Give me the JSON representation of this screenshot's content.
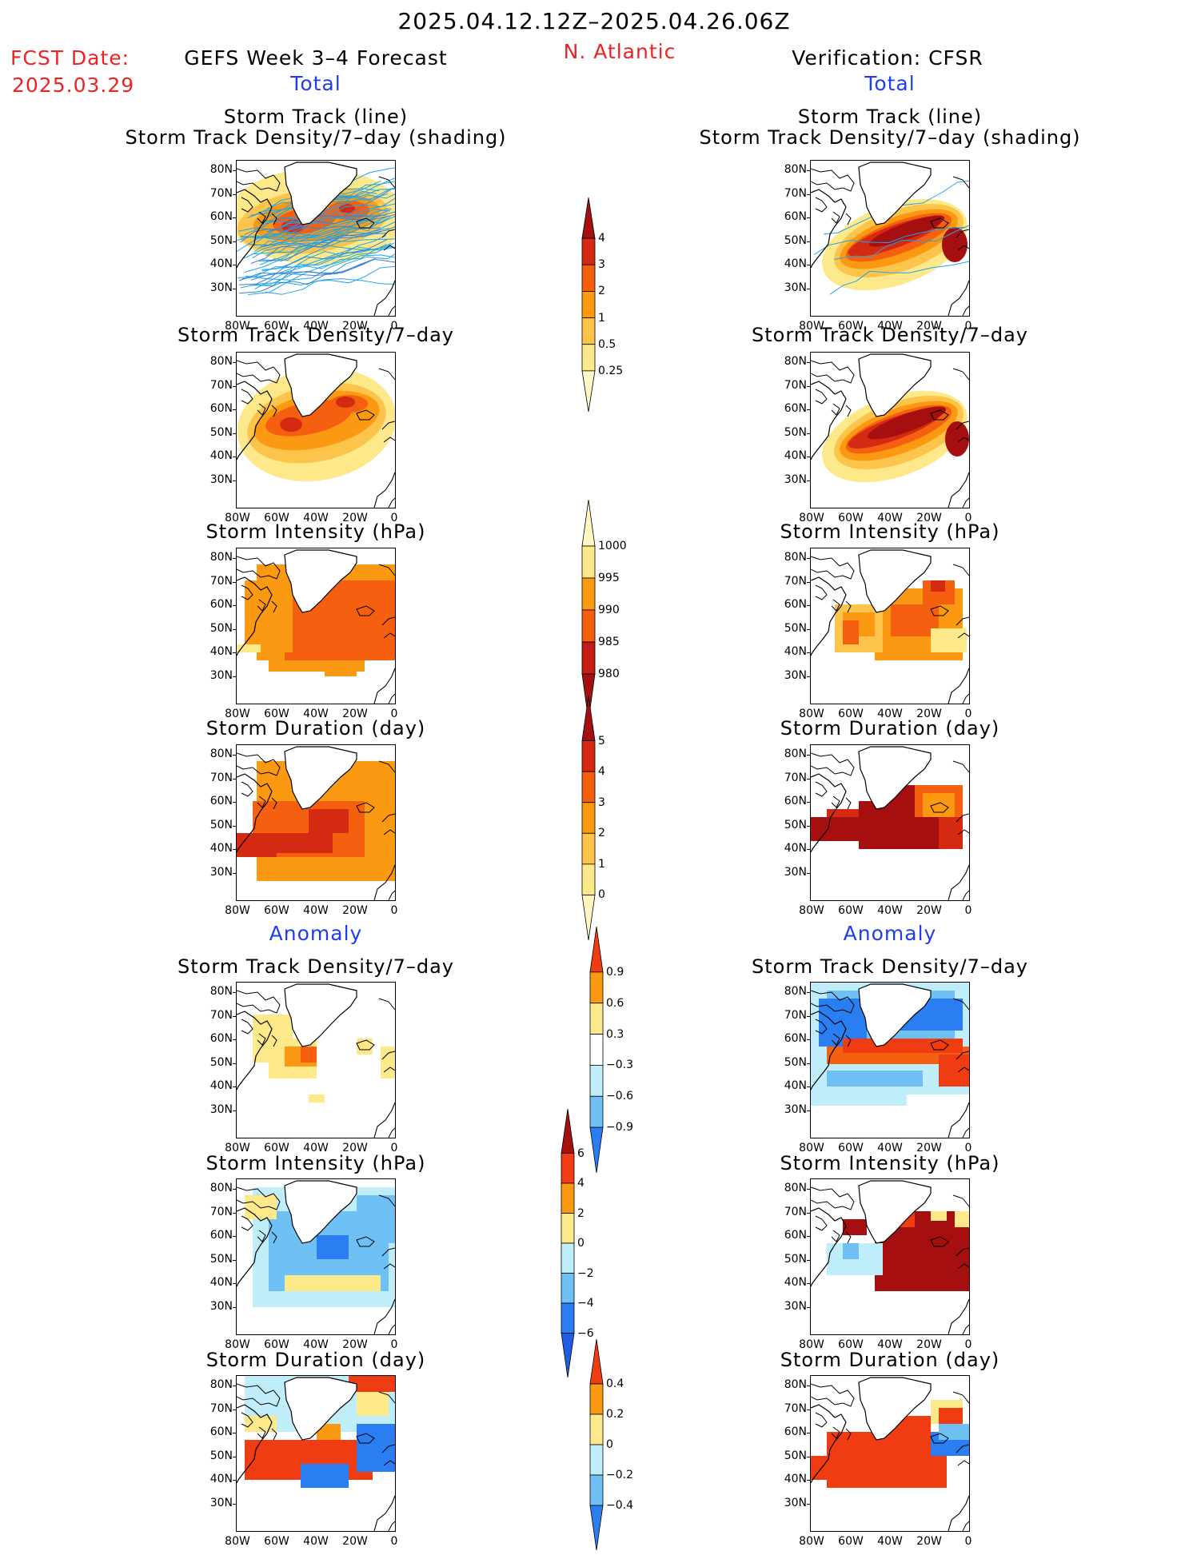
{
  "header": {
    "date_range": "2025.04.12.12Z–2025.04.26.06Z",
    "fcst_label": "FCST Date:",
    "fcst_date": "2025.03.29",
    "forecast_title": "GEFS Week 3–4 Forecast",
    "region": "N. Atlantic",
    "verification_title": "Verification: CFSR"
  },
  "sections": {
    "total": "Total",
    "anomaly": "Anomaly"
  },
  "panel_titles": {
    "track_line": "Storm Track (line)",
    "track_shading": "Storm Track Density/7–day (shading)",
    "density": "Storm Track Density/7–day",
    "intensity": "Storm Intensity (hPa)",
    "duration": "Storm Duration (day)"
  },
  "axes": {
    "lat_ticks": [
      "80N",
      "70N",
      "60N",
      "50N",
      "40N",
      "30N"
    ],
    "lon_ticks": [
      "80W",
      "60W",
      "40W",
      "20W",
      "0"
    ]
  },
  "colorbars": {
    "density_total": {
      "labels": [
        "4",
        "3",
        "2",
        "1",
        "0.5",
        "0.25"
      ],
      "colors": [
        "#a50f0f",
        "#d42a12",
        "#f56010",
        "#fb9a12",
        "#fcc44a",
        "#fde88a",
        "#fff6c4"
      ]
    },
    "intensity_total": {
      "labels": [
        "1000",
        "995",
        "990",
        "985",
        "980"
      ],
      "colors": [
        "#fff6c4",
        "#fde88a",
        "#fb9a12",
        "#f56010",
        "#c41c12",
        "#a50f0f"
      ]
    },
    "duration_total": {
      "labels": [
        "5",
        "4",
        "3",
        "2",
        "1",
        "0"
      ],
      "colors": [
        "#a50f0f",
        "#d42a12",
        "#f56010",
        "#fb9a12",
        "#fcc44a",
        "#fde88a",
        "#fff6c4"
      ]
    },
    "density_anom": {
      "labels": [
        "0.9",
        "0.6",
        "0.3",
        "−0.3",
        "−0.6",
        "−0.9"
      ],
      "colors": [
        "#f03c12",
        "#fb9a12",
        "#fde88a",
        "#ffffff",
        "#bfeefa",
        "#6fc1f5",
        "#2a7ef2"
      ]
    },
    "intensity_anom": {
      "labels": [
        "6",
        "4",
        "2",
        "0",
        "−2",
        "−4",
        "−6"
      ],
      "colors": [
        "#a50f0f",
        "#f03c12",
        "#fb9a12",
        "#fde88a",
        "#bfeefa",
        "#6fc1f5",
        "#2a7ef2",
        "#1f5ee0"
      ]
    },
    "duration_anom": {
      "labels": [
        "0.4",
        "0.2",
        "0",
        "−0.2",
        "−0.4"
      ],
      "colors": [
        "#f03c12",
        "#fb9a12",
        "#fde88a",
        "#bfeefa",
        "#6fc1f5",
        "#2a7ef2"
      ]
    }
  }
}
